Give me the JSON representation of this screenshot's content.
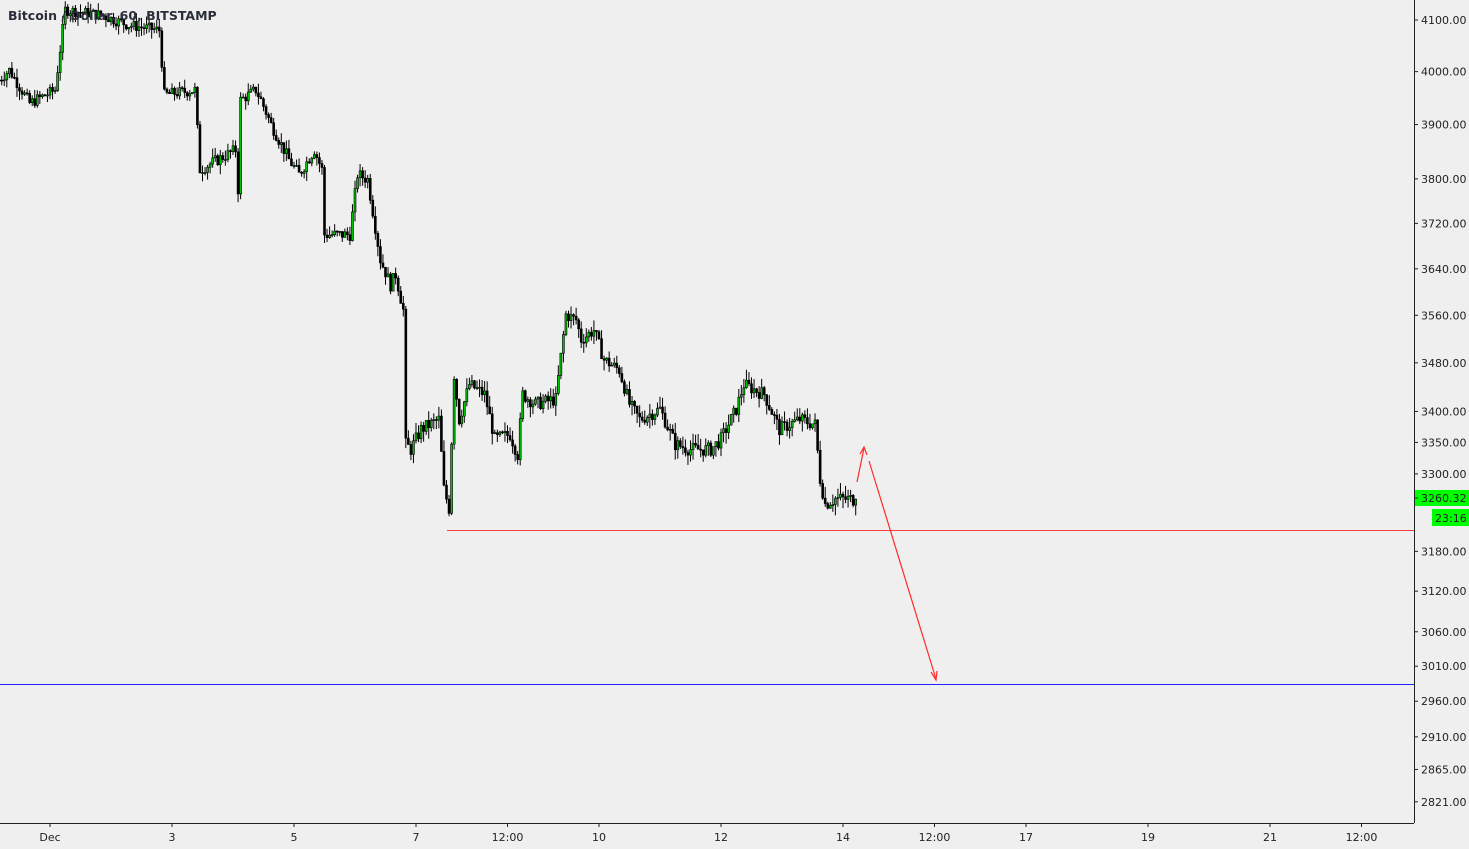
{
  "chart_data": {
    "type": "candlestick",
    "title": "Bitcoin / Dollar, 60, BITSTAMP",
    "y_scale": "log",
    "ylim": [
      2790,
      4150
    ],
    "y_ticks": [
      "4100.00",
      "4000.00",
      "3900.00",
      "3800.00",
      "3720.00",
      "3640.00",
      "3560.00",
      "3480.00",
      "3400.00",
      "3350.00",
      "3300.00",
      "3180.00",
      "3120.00",
      "3060.00",
      "3010.00",
      "2960.00",
      "2910.00",
      "2865.00",
      "2821.00"
    ],
    "x_ticks": [
      {
        "label": "Dec",
        "time": "12-01 00:00"
      },
      {
        "label": "3",
        "time": "12-03 00:00"
      },
      {
        "label": "5",
        "time": "12-05 00:00"
      },
      {
        "label": "7",
        "time": "12-07 00:00"
      },
      {
        "label": "12:00",
        "time": "12-08 12:00"
      },
      {
        "label": "10",
        "time": "12-10 00:00"
      },
      {
        "label": "12",
        "time": "12-12 00:00"
      },
      {
        "label": "14",
        "time": "12-14 00:00"
      },
      {
        "label": "12:00",
        "time": "12-15 12:00"
      },
      {
        "label": "17",
        "time": "12-17 00:00"
      },
      {
        "label": "19",
        "time": "12-19 00:00"
      },
      {
        "label": "21",
        "time": "12-21 00:00"
      },
      {
        "label": "12:00",
        "time": "12-22 12:00"
      }
    ],
    "up_color": "#00c400",
    "down_color": "#000000",
    "close_path": [
      [
        "11-30 04:00",
        3984
      ],
      [
        "11-30 08:00",
        4003
      ],
      [
        "11-30 16:00",
        3940
      ],
      [
        "12-01 02:00",
        3965
      ],
      [
        "12-01 06:00",
        4120
      ],
      [
        "12-01 20:00",
        4110
      ],
      [
        "12-02 07:00",
        4090
      ],
      [
        "12-02 19:00",
        4080
      ],
      [
        "12-02 21:00",
        3956
      ],
      [
        "12-03 09:00",
        3965
      ],
      [
        "12-03 11:00",
        3817
      ],
      [
        "12-04 01:00",
        3853
      ],
      [
        "12-04 02:00",
        3781
      ],
      [
        "12-04 03:00",
        3946
      ],
      [
        "12-04 09:00",
        3965
      ],
      [
        "12-04 11:00",
        3946
      ],
      [
        "12-04 15:00",
        3900
      ],
      [
        "12-04 22:00",
        3835
      ],
      [
        "12-05 02:00",
        3808
      ],
      [
        "12-05 08:00",
        3853
      ],
      [
        "12-05 11:00",
        3817
      ],
      [
        "12-05 12:00",
        3700
      ],
      [
        "12-05 22:00",
        3700
      ],
      [
        "12-06 01:00",
        3808
      ],
      [
        "12-06 05:00",
        3799
      ],
      [
        "12-06 10:00",
        3656
      ],
      [
        "12-06 14:00",
        3612
      ],
      [
        "12-06 16:00",
        3630
      ],
      [
        "12-06 19:00",
        3569
      ],
      [
        "12-06 20:00",
        3347
      ],
      [
        "12-06 22:00",
        3339
      ],
      [
        "12-07 02:00",
        3371
      ],
      [
        "12-07 09:00",
        3387
      ],
      [
        "12-07 11:00",
        3276
      ],
      [
        "12-07 13:00",
        3246
      ],
      [
        "12-07 15:00",
        3460
      ],
      [
        "12-07 17:00",
        3387
      ],
      [
        "12-07 21:00",
        3444
      ],
      [
        "12-08 03:00",
        3428
      ],
      [
        "12-08 07:00",
        3355
      ],
      [
        "12-08 13:00",
        3363
      ],
      [
        "12-08 16:00",
        3331
      ],
      [
        "12-08 18:00",
        3428
      ],
      [
        "12-08 23:00",
        3412
      ],
      [
        "12-09 07:00",
        3420
      ],
      [
        "12-09 11:00",
        3561
      ],
      [
        "12-09 15:00",
        3552
      ],
      [
        "12-09 17:00",
        3519
      ],
      [
        "12-09 22:00",
        3535
      ],
      [
        "12-10 02:00",
        3485
      ],
      [
        "12-10 08:00",
        3468
      ],
      [
        "12-10 12:00",
        3412
      ],
      [
        "12-10 16:00",
        3387
      ],
      [
        "12-11 00:00",
        3404
      ],
      [
        "12-11 06:00",
        3347
      ],
      [
        "12-11 12:00",
        3339
      ],
      [
        "12-11 20:00",
        3339
      ],
      [
        "12-12 00:00",
        3355
      ],
      [
        "12-12 06:00",
        3404
      ],
      [
        "12-12 09:00",
        3444
      ],
      [
        "12-12 17:00",
        3428
      ],
      [
        "12-12 23:00",
        3371
      ],
      [
        "12-13 07:00",
        3387
      ],
      [
        "12-13 13:00",
        3379
      ],
      [
        "12-13 15:00",
        3292
      ],
      [
        "12-13 17:00",
        3253
      ],
      [
        "12-13 21:00",
        3261
      ],
      [
        "12-14 05:00",
        3260.32
      ]
    ],
    "horizontal_lines": [
      {
        "price": 3213,
        "color": "#ff3b3b"
      },
      {
        "price": 2985,
        "color": "#2222ff"
      }
    ],
    "last_price": "3260.32",
    "countdown": "23:16",
    "last_price_color": "#00ff00"
  }
}
